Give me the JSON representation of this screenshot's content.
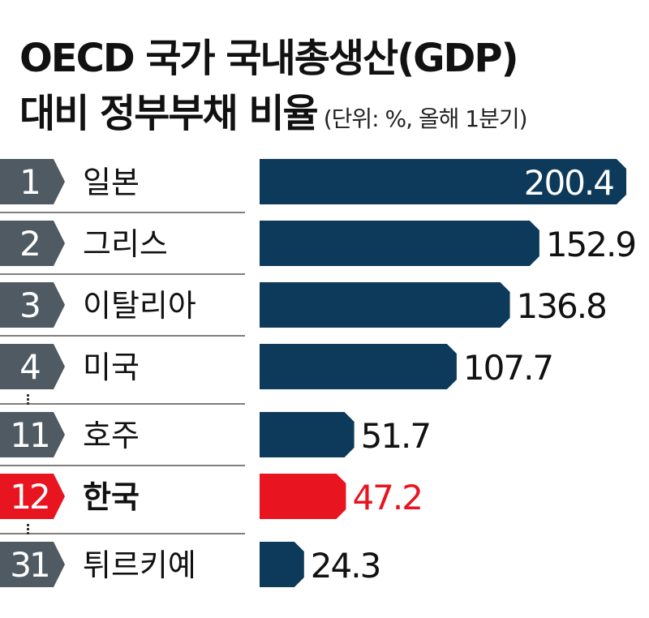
{
  "chart_data": {
    "type": "bar",
    "orientation": "horizontal",
    "title_line1": "OECD 국가 국내총생산(GDP)",
    "title_line2": "대비 정부부채 비율",
    "unit_note": "(단위: %, 올해 1분기)",
    "items": [
      {
        "rank": "1",
        "country": "일본",
        "value": 200.4,
        "value_label": "200.4",
        "highlight": false,
        "gap_before": false
      },
      {
        "rank": "2",
        "country": "그리스",
        "value": 152.9,
        "value_label": "152.9",
        "highlight": false,
        "gap_before": false
      },
      {
        "rank": "3",
        "country": "이탈리아",
        "value": 136.8,
        "value_label": "136.8",
        "highlight": false,
        "gap_before": false
      },
      {
        "rank": "4",
        "country": "미국",
        "value": 107.7,
        "value_label": "107.7",
        "highlight": false,
        "gap_before": false
      },
      {
        "rank": "11",
        "country": "호주",
        "value": 51.7,
        "value_label": "51.7",
        "highlight": false,
        "gap_before": true
      },
      {
        "rank": "12",
        "country": "한국",
        "value": 47.2,
        "value_label": "47.2",
        "highlight": true,
        "gap_before": false
      },
      {
        "rank": "31",
        "country": "튀르키예",
        "value": 24.3,
        "value_label": "24.3",
        "highlight": false,
        "gap_before": true
      }
    ],
    "colors": {
      "bar": "#0d3a5a",
      "highlight": "#e8141f",
      "badge": "#4f5a62",
      "badge_highlight": "#e8141f",
      "text": "#111111",
      "value_inside": "#ffffff"
    }
  }
}
